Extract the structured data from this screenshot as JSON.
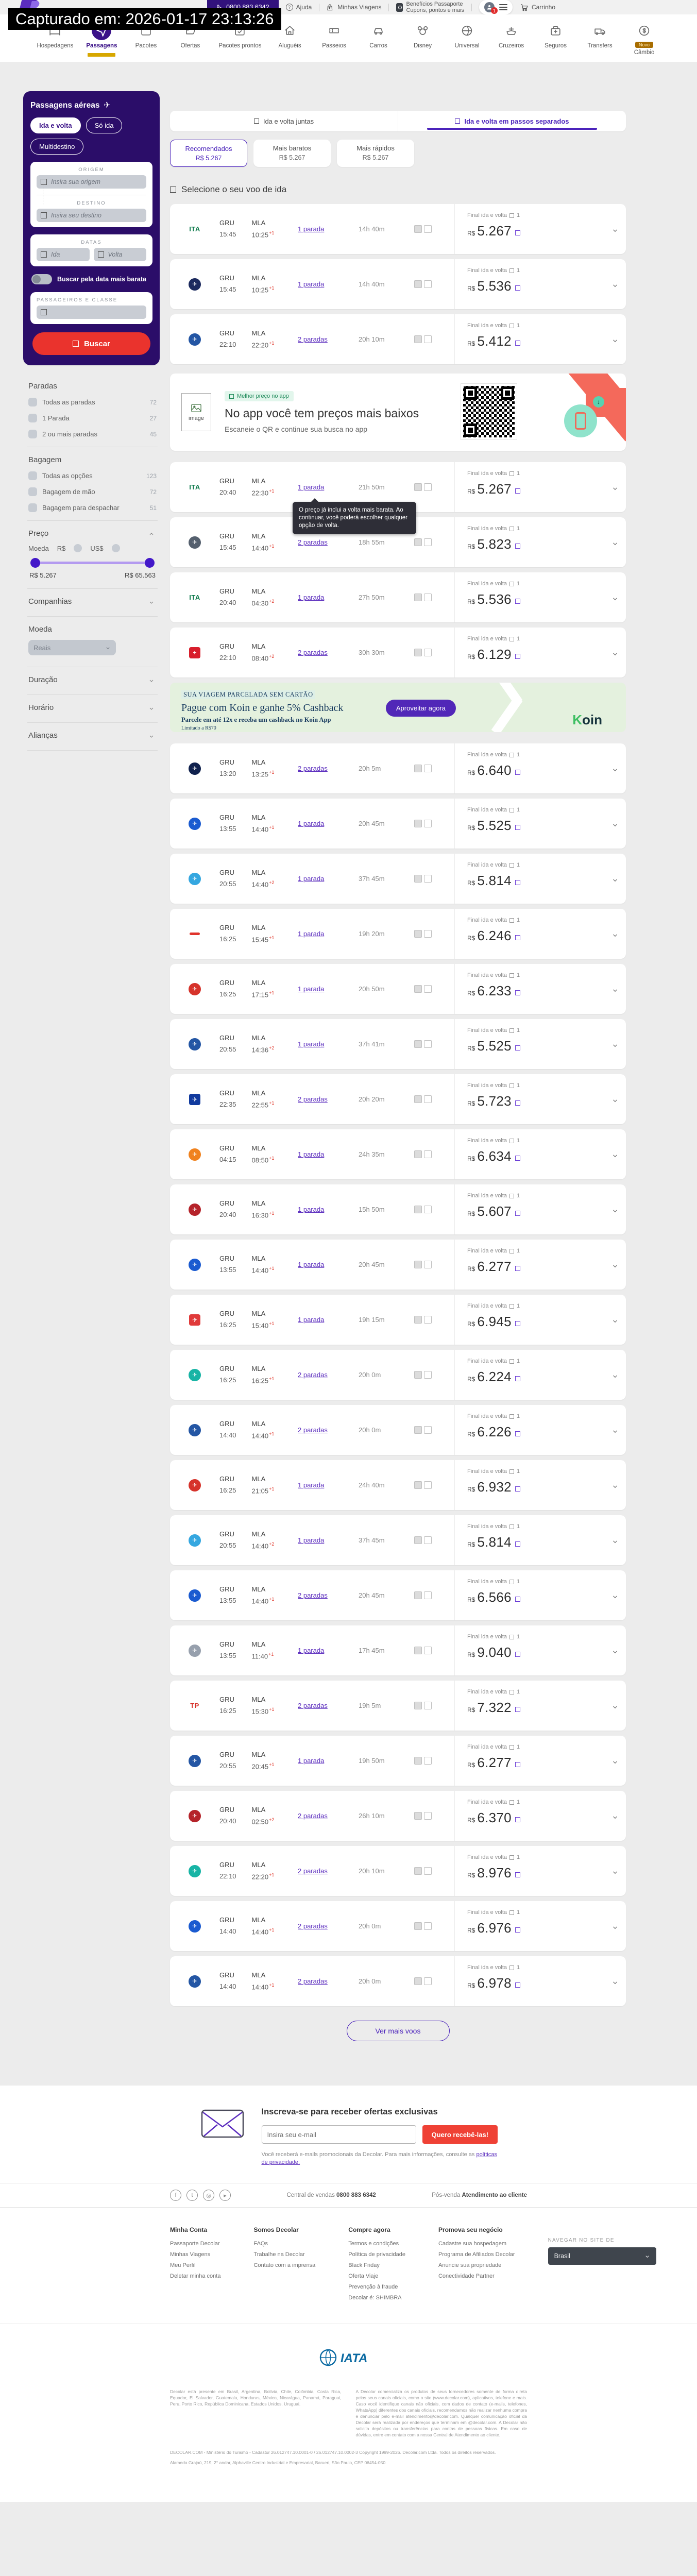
{
  "captured": "Capturado em: 2026-01-17 23:13:26",
  "topbar": {
    "phone": "0800 883 6342",
    "ajuda": "Ajuda",
    "minhas_viagens": "Minhas Viagens",
    "beneficios_1": "Benefícios Passaporte",
    "beneficios_2": "Cupons, pontos e mais",
    "badge": "1",
    "carrinho": "Carrinho"
  },
  "nav": [
    {
      "label": "Hospedagens",
      "icon": "bed"
    },
    {
      "label": "Passagens",
      "icon": "plane",
      "active": true
    },
    {
      "label": "Pacotes",
      "icon": "suitcase"
    },
    {
      "label": "Ofertas",
      "icon": "offer"
    },
    {
      "label": "Pacotes prontos",
      "icon": "casecheck"
    },
    {
      "label": "Aluguéis",
      "icon": "house"
    },
    {
      "label": "Passeios",
      "icon": "ticket"
    },
    {
      "label": "Carros",
      "icon": "car"
    },
    {
      "label": "Disney",
      "icon": "mickey"
    },
    {
      "label": "Universal",
      "icon": "globe"
    },
    {
      "label": "Cruzeiros",
      "icon": "ship"
    },
    {
      "label": "Seguros",
      "icon": "medbag"
    },
    {
      "label": "Transfers",
      "icon": "van"
    },
    {
      "label": "Câmbio",
      "icon": "coin",
      "badge": "Novo"
    }
  ],
  "search": {
    "title": "Passagens aéreas",
    "trip_types": [
      {
        "label": "Ida e volta",
        "active": true
      },
      {
        "label": "Só ida"
      },
      {
        "label": "Multidestino"
      }
    ],
    "origem_label": "ORIGEM",
    "origem_placeholder": "Insira sua origem",
    "destino_label": "DESTINO",
    "destino_placeholder": "Insira seu destino",
    "datas_label": "DATAS",
    "ida_placeholder": "Ida",
    "volta_placeholder": "Volta",
    "cheapest_toggle": "Buscar pela data mais barata",
    "pax_label": "PASSAGEIROS E CLASSE",
    "buscar": "Buscar"
  },
  "filters": {
    "paradas": {
      "title": "Paradas",
      "options": [
        {
          "label": "Todas as paradas",
          "count": "72"
        },
        {
          "label": "1 Parada",
          "count": "27"
        },
        {
          "label": "2 ou mais paradas",
          "count": "45"
        }
      ]
    },
    "bagagem": {
      "title": "Bagagem",
      "options": [
        {
          "label": "Todas as opções",
          "count": "123"
        },
        {
          "label": "Bagagem de mão",
          "count": "72"
        },
        {
          "label": "Bagagem para despachar",
          "count": "51"
        }
      ]
    },
    "preco": {
      "title": "Preço",
      "moeda_label": "Moeda",
      "brl": "R$",
      "usd": "US$",
      "min": "R$ 5.267",
      "max": "R$ 65.563"
    },
    "collapsed_top": [
      {
        "title": "Companhias"
      }
    ],
    "moeda": {
      "title": "Moeda",
      "selected": "Reais"
    },
    "collapsed_bottom": [
      {
        "title": "Duração"
      },
      {
        "title": "Horário"
      },
      {
        "title": "Alianças"
      }
    ]
  },
  "results": {
    "tabs": [
      {
        "label": "Ida e volta juntas"
      },
      {
        "label": "Ida e volta em passos separados",
        "active": true
      }
    ],
    "sorts": [
      {
        "label": "Recomendados",
        "price": "R$ 5.267",
        "active": true
      },
      {
        "label": "Mais baratos",
        "price": "R$ 5.267"
      },
      {
        "label": "Mais rápidos",
        "price": "R$ 5.267"
      }
    ],
    "section_title": "Selecione o seu voo de ida",
    "dep_ap": "GRU",
    "arr_ap": "MLA",
    "price_label": "Final ida e volta",
    "pax": "1",
    "cur": "R$",
    "tooltip": "O preço já inclui a volta mais barata. Ao continuar, você poderá escolher qualquer opção de volta.",
    "more_label": "Ver mais voos",
    "rows_a": [
      {
        "logo": {
          "label": "ITA",
          "cls": "chip chip-text",
          "fg": "#0d7a4b"
        },
        "dep": "15:45",
        "arr": "10:25",
        "plus": "+1",
        "stops": "1 parada",
        "dur": "14h 40m",
        "price": "5.267"
      },
      {
        "logo": {
          "label": "✈",
          "cls": "chip chip-round",
          "bg": "#1c2a5e"
        },
        "dep": "15:45",
        "arr": "10:25",
        "plus": "+1",
        "stops": "1 parada",
        "dur": "14h 40m",
        "price": "5.536"
      },
      {
        "logo": {
          "label": "✈",
          "cls": "chip chip-round",
          "bg": "#2456a4"
        },
        "dep": "22:10",
        "arr": "22:20",
        "plus": "+1",
        "stops": "2 paradas",
        "dur": "20h 10m",
        "price": "5.412"
      }
    ],
    "rows_b": [
      {
        "logo": {
          "label": "ITA",
          "cls": "chip chip-text",
          "fg": "#0d7a4b"
        },
        "dep": "20:40",
        "arr": "22:30",
        "plus": "+1",
        "stops": "1 parada",
        "dur": "21h 50m",
        "price": "5.267"
      },
      {
        "logo": {
          "label": "✈",
          "cls": "chip chip-round",
          "bg": "#55606e"
        },
        "dep": "15:45",
        "arr": "14:40",
        "plus": "+1",
        "stops": "2 paradas",
        "dur": "18h 55m",
        "price": "5.823",
        "tip": true
      },
      {
        "logo": {
          "label": "ITA",
          "cls": "chip chip-text",
          "fg": "#0d7a4b"
        },
        "dep": "20:40",
        "arr": "04:30",
        "plus": "+2",
        "stops": "1 parada",
        "dur": "27h 50m",
        "price": "5.536"
      },
      {
        "logo": {
          "label": "+",
          "cls": "chip chip-sq",
          "bg": "#d81e2c"
        },
        "dep": "22:10",
        "arr": "08:40",
        "plus": "+2",
        "stops": "2 paradas",
        "dur": "30h 30m",
        "price": "6.129"
      }
    ],
    "rows_c": [
      {
        "logo": {
          "label": "✈",
          "cls": "chip chip-round",
          "bg": "#10214d"
        },
        "dep": "13:20",
        "arr": "13:25",
        "plus": "+1",
        "stops": "2 paradas",
        "dur": "20h 5m",
        "price": "6.640"
      },
      {
        "logo": {
          "label": "✈",
          "cls": "chip chip-round",
          "bg": "#1b5bd0"
        },
        "dep": "13:55",
        "arr": "14:40",
        "plus": "+1",
        "stops": "1 parada",
        "dur": "20h 45m",
        "price": "5.525"
      },
      {
        "logo": {
          "label": "✈",
          "cls": "chip chip-round",
          "bg": "#35a7e0"
        },
        "dep": "20:55",
        "arr": "14:40",
        "plus": "+2",
        "stops": "1 parada",
        "dur": "37h 45m",
        "price": "5.814"
      },
      {
        "logo": {
          "label": "",
          "cls": "chip chip-dash",
          "bg": "#e0342c"
        },
        "dep": "16:25",
        "arr": "15:45",
        "plus": "+1",
        "stops": "1 parada",
        "dur": "19h 20m",
        "price": "6.246"
      },
      {
        "logo": {
          "label": "✈",
          "cls": "chip chip-round",
          "bg": "#d6332b"
        },
        "dep": "16:25",
        "arr": "17:15",
        "plus": "+1",
        "stops": "1 parada",
        "dur": "20h 50m",
        "price": "6.233"
      },
      {
        "logo": {
          "label": "✈",
          "cls": "chip chip-round",
          "bg": "#2456a4"
        },
        "dep": "20:55",
        "arr": "14:36",
        "plus": "+2",
        "stops": "1 parada",
        "dur": "37h 41m",
        "price": "5.525"
      },
      {
        "logo": {
          "label": "✈",
          "cls": "chip chip-sq",
          "bg": "#113a9e"
        },
        "dep": "22:35",
        "arr": "22:55",
        "plus": "+1",
        "stops": "2 paradas",
        "dur": "20h 20m",
        "price": "5.723"
      },
      {
        "logo": {
          "label": "✈",
          "cls": "chip chip-round",
          "bg": "#f0821e"
        },
        "dep": "04:15",
        "arr": "08:50",
        "plus": "+1",
        "stops": "1 parada",
        "dur": "24h 35m",
        "price": "6.634"
      },
      {
        "logo": {
          "label": "✈",
          "cls": "chip chip-round",
          "bg": "#b5232a"
        },
        "dep": "20:40",
        "arr": "16:30",
        "plus": "+1",
        "stops": "1 parada",
        "dur": "15h 50m",
        "price": "5.607"
      },
      {
        "logo": {
          "label": "✈",
          "cls": "chip chip-round",
          "bg": "#1b5bd0"
        },
        "dep": "13:55",
        "arr": "14:40",
        "plus": "+1",
        "stops": "1 parada",
        "dur": "20h 45m",
        "price": "6.277"
      },
      {
        "logo": {
          "label": "✈",
          "cls": "chip chip-sq",
          "bg": "#e03a3a"
        },
        "dep": "16:25",
        "arr": "15:40",
        "plus": "+1",
        "stops": "1 parada",
        "dur": "19h 15m",
        "price": "6.945"
      },
      {
        "logo": {
          "label": "✈",
          "cls": "chip chip-round",
          "bg": "#18b4a5"
        },
        "dep": "16:25",
        "arr": "16:25",
        "plus": "+1",
        "stops": "2 paradas",
        "dur": "20h 0m",
        "price": "6.224"
      },
      {
        "logo": {
          "label": "✈",
          "cls": "chip chip-round",
          "bg": "#2456a4"
        },
        "dep": "14:40",
        "arr": "14:40",
        "plus": "+1",
        "stops": "2 paradas",
        "dur": "20h 0m",
        "price": "6.226"
      },
      {
        "logo": {
          "label": "✈",
          "cls": "chip chip-round",
          "bg": "#d6332b"
        },
        "dep": "16:25",
        "arr": "21:05",
        "plus": "+1",
        "stops": "1 parada",
        "dur": "24h 40m",
        "price": "6.932"
      },
      {
        "logo": {
          "label": "✈",
          "cls": "chip chip-round",
          "bg": "#35a7e0"
        },
        "dep": "20:55",
        "arr": "14:40",
        "plus": "+2",
        "stops": "1 parada",
        "dur": "37h 45m",
        "price": "5.814"
      },
      {
        "logo": {
          "label": "✈",
          "cls": "chip chip-round",
          "bg": "#1b5bd0"
        },
        "dep": "13:55",
        "arr": "14:40",
        "plus": "+1",
        "stops": "2 paradas",
        "dur": "20h 45m",
        "price": "6.566"
      },
      {
        "logo": {
          "label": "✈",
          "cls": "chip chip-round",
          "bg": "#97a0ad"
        },
        "dep": "13:55",
        "arr": "11:40",
        "plus": "+1",
        "stops": "1 parada",
        "dur": "17h 45m",
        "price": "9.040"
      },
      {
        "logo": {
          "label": "TP",
          "cls": "chip chip-text",
          "fg": "#d6332b"
        },
        "dep": "16:25",
        "arr": "15:30",
        "plus": "+1",
        "stops": "2 paradas",
        "dur": "19h 5m",
        "price": "7.322"
      },
      {
        "logo": {
          "label": "✈",
          "cls": "chip chip-round",
          "bg": "#2456a4"
        },
        "dep": "20:55",
        "arr": "20:45",
        "plus": "+1",
        "stops": "1 parada",
        "dur": "19h 50m",
        "price": "6.277"
      },
      {
        "logo": {
          "label": "✈",
          "cls": "chip chip-round",
          "bg": "#b5232a"
        },
        "dep": "20:40",
        "arr": "02:50",
        "plus": "+2",
        "stops": "2 paradas",
        "dur": "26h 10m",
        "price": "6.370"
      },
      {
        "logo": {
          "label": "✈",
          "cls": "chip chip-round",
          "bg": "#18b4a5"
        },
        "dep": "22:10",
        "arr": "22:20",
        "plus": "+1",
        "stops": "2 paradas",
        "dur": "20h 10m",
        "price": "8.976"
      },
      {
        "logo": {
          "label": "✈",
          "cls": "chip chip-round",
          "bg": "#1b5bd0"
        },
        "dep": "14:40",
        "arr": "14:40",
        "plus": "+1",
        "stops": "2 paradas",
        "dur": "20h 0m",
        "price": "6.976"
      },
      {
        "logo": {
          "label": "✈",
          "cls": "chip chip-round",
          "bg": "#2456a4"
        },
        "dep": "14:40",
        "arr": "14:40",
        "plus": "+1",
        "stops": "2 paradas",
        "dur": "20h 0m",
        "price": "6.978"
      }
    ]
  },
  "app_banner": {
    "badge": "Melhor preço no app",
    "title": "No app você tem preços mais baixos",
    "subtitle": "Escaneie o QR e continue sua busca no app",
    "img_alt": "image"
  },
  "koin": {
    "eyebrow": "SUA VIAGEM PARCELADA SEM CARTÃO",
    "title": "Pague com Koin e ganhe 5% Cashback",
    "subtitle": "Parcele em até 12x e receba um cashback no Koin App",
    "limit": "Limitado a R$70",
    "cta": "Aproveitar agora",
    "logo_k": "K",
    "logo_rest": "oin"
  },
  "newsletter": {
    "title": "Inscreva-se para receber ofertas exclusivas",
    "placeholder": "Insira seu e-mail",
    "cta": "Quero recebê-las!",
    "disclaimer": "Você receberá e-mails promocionais da Decolar. Para mais informações, consulte as",
    "disclaimer_link": "políticas de privacidade."
  },
  "contact": {
    "vendas_label": "Central de vendas",
    "vendas_phone": "0800 883 6342",
    "pos_label": "Pós-venda",
    "pos_value": "Atendimento ao cliente"
  },
  "footer": {
    "cols": [
      {
        "title": "Minha Conta",
        "items": [
          {
            "label": "Passaporte Decolar"
          },
          {
            "label": "Minhas Viagens"
          },
          {
            "label": "Meu Perfil"
          },
          {
            "label": "Deletar minha conta"
          }
        ]
      },
      {
        "title": "Somos Decolar",
        "items": [
          {
            "label": "FAQs"
          },
          {
            "label": "Trabalhe na Decolar"
          },
          {
            "label": "Contato com a imprensa"
          }
        ]
      },
      {
        "title": "Compre agora",
        "items": [
          {
            "label": "Termos e condições"
          },
          {
            "label": "Política de privacidade"
          },
          {
            "label": "Black Friday"
          },
          {
            "label": "Oferta Viaje"
          },
          {
            "label": "Prevenção à fraude"
          },
          {
            "label": "Decolar é: SHIMBRA"
          }
        ]
      },
      {
        "title": "Promova seu negócio",
        "items": [
          {
            "label": "Cadastre sua hospedagem"
          },
          {
            "label": "Programa de Afiliados Decolar"
          },
          {
            "label": "Anuncie sua propriedade"
          },
          {
            "label": "Conectividade Partner"
          }
        ]
      }
    ],
    "region_label": "NAVEGAR NO SITE DE",
    "region_value": "Brasil",
    "iata": "IATA",
    "legal_left": "Decolar está presente em Brasil, Argentina, Bolívia, Chile, Colômbia, Costa Rica, Equador, El Salvador, Guatemala, Honduras, México, Nicarágua, Panamá, Paraguai, Peru, Porto Rico, República Dominicana, Estados Unidos, Uruguai.",
    "legal_right": "A Decolar comercializa os produtos de seus fornecedores somente de forma direta pelos seus canais oficiais, como o site (www.decolar.com), aplicativos, telefone e mais. Caso você identifique canais não oficiais, com dados de contato (e-mails, telefones, WhatsApp) diferentes dos canais oficiais, recomendamos não realizar nenhuma compra e denunciar pelo e-mail atendimento@decolar.com. Qualquer comunicação oficial da Decolar será realizada por endereços que terminam em @decolar.com. A Decolar não solicita depósitos ou transferências para contas de pessoas físicas. Em caso de dúvidas, entre em contato com a nossa Central de Atendimento ao cliente.",
    "cadastur": "DECOLAR.COM - Ministério do Turismo - Cadastur 26.012747.10.0001-0 / 26.012747.10.0002-3 Copyright 1999-2026. Decolar.com Ltda. Todos os direitos reservados.",
    "address": "Alameda Grajaú, 219, 2° andar, Alphaville Centro Industrial e Empresarial, Barueri, São Paulo, CEP 06454-050"
  }
}
